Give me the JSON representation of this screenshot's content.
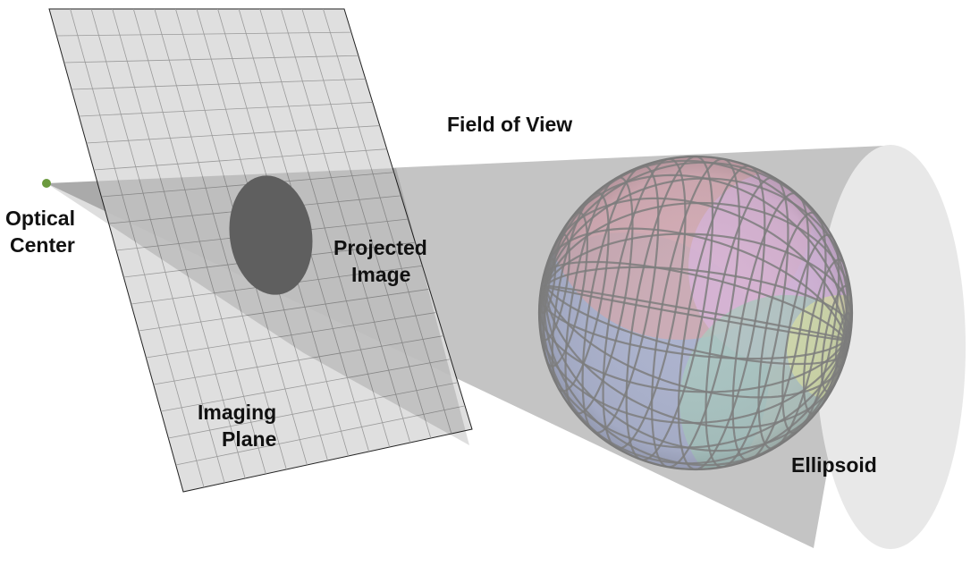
{
  "labels": {
    "field_of_view": "Field of View",
    "optical_center_line1": "Optical",
    "optical_center_line2": "Center",
    "projected_image_line1": "Projected",
    "projected_image_line2": "Image",
    "imaging_plane_line1": "Imaging",
    "imaging_plane_line2": "Plane",
    "ellipsoid": "Ellipsoid"
  },
  "colors": {
    "cone_fill": "#c4c4c4",
    "cone_cap": "#e8e8e8",
    "plane_fill": "#dcdcdc",
    "plane_grid": "#9a9a9a",
    "projected_image": "#5f5f5f",
    "optical_center_dot": "#6b9a3e",
    "mesh_line": "#7d7d7d"
  }
}
